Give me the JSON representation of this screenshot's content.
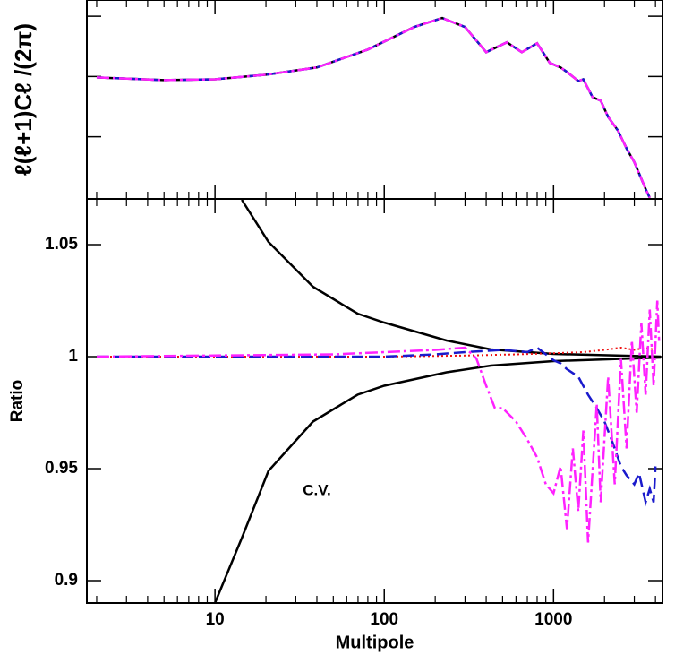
{
  "chart_data": [
    {
      "type": "line",
      "ylabel": "ℓ(ℓ+1)Cℓ /(2π)",
      "log_x": true,
      "log_y": true,
      "xlim": [
        1.75,
        4400
      ],
      "xticks": [
        10,
        100,
        1000
      ],
      "xticks_minor": [
        2,
        3,
        4,
        5,
        6,
        7,
        8,
        9,
        20,
        30,
        40,
        50,
        60,
        70,
        80,
        90,
        200,
        300,
        400,
        500,
        600,
        700,
        800,
        900,
        2000,
        3000,
        4000
      ],
      "ylim": [
        9.3,
        18600
      ],
      "yticks": [
        100,
        1000,
        10000
      ],
      "series": [
        {
          "color": "#000000",
          "dash": "solid",
          "x": [
            2,
            5,
            10,
            20,
            40,
            80,
            150,
            220,
            300,
            400,
            530,
            650,
            800,
            950,
            1100,
            1200,
            1400,
            1500,
            1700,
            1900,
            2100,
            2400,
            2700,
            3000,
            3500,
            3700
          ],
          "values": [
            966,
            870,
            900,
            1070,
            1410,
            2800,
            6620,
            9333,
            6620,
            2530,
            3690,
            2530,
            3560,
            1680,
            1410,
            1190,
            840,
            900,
            454,
            396,
            213,
            127,
            64,
            38,
            13.6,
            9.7
          ]
        },
        {
          "color": "#1a1acc",
          "dash": "dashed",
          "x": [
            2,
            5,
            10,
            20,
            40,
            80,
            150,
            220,
            300,
            400,
            530,
            650,
            800,
            950,
            1100,
            1200,
            1400,
            1500,
            1700,
            1900,
            2100,
            2400,
            2700,
            3000,
            3500,
            3700
          ],
          "values": [
            966,
            870,
            900,
            1070,
            1410,
            2800,
            6620,
            9333,
            6620,
            2530,
            3690,
            2530,
            3560,
            1680,
            1410,
            1190,
            840,
            900,
            454,
            396,
            213,
            127,
            64,
            38,
            13.6,
            9.7
          ]
        },
        {
          "color": "#ff22ff",
          "dash": "dashdot",
          "x": [
            2,
            5,
            10,
            20,
            40,
            80,
            150,
            220,
            300,
            400,
            530,
            650,
            800,
            950,
            1100,
            1200,
            1400,
            1500,
            1700,
            1900,
            2100,
            2400,
            2700,
            3000,
            3500,
            3700
          ],
          "values": [
            966,
            870,
            900,
            1070,
            1410,
            2800,
            6620,
            9333,
            6620,
            2530,
            3690,
            2530,
            3560,
            1680,
            1410,
            1190,
            840,
            900,
            454,
            396,
            213,
            127,
            64,
            38,
            13.6,
            9.7
          ]
        }
      ]
    },
    {
      "type": "line",
      "xlabel": "Multipole",
      "ylabel": "Ratio",
      "log_x": true,
      "log_y": false,
      "xlim": [
        1.75,
        4400
      ],
      "xticks": [
        10,
        100,
        1000
      ],
      "xticks_minor": [
        2,
        3,
        4,
        5,
        6,
        7,
        8,
        9,
        20,
        30,
        40,
        50,
        60,
        70,
        80,
        90,
        200,
        300,
        400,
        500,
        600,
        700,
        800,
        900,
        2000,
        3000,
        4000
      ],
      "ylim": [
        0.89,
        1.0704
      ],
      "yticks": [
        0.9,
        0.95,
        1,
        1.05
      ],
      "annotation": {
        "text": "C.V.",
        "x": 40,
        "y": 0.94
      },
      "series": [
        {
          "color": "#000000",
          "dash": "solid",
          "x": [
            14.4,
            20.7,
            37.9,
            69.5,
            100,
            233,
            427,
            1000,
            4300
          ],
          "values": [
            1.07,
            1.0512,
            1.0312,
            1.0192,
            1.0152,
            1.0072,
            1.0032,
            1.0012,
            1.0
          ]
        },
        {
          "color": "#000000",
          "dash": "solid",
          "x": [
            10,
            14.4,
            20.7,
            37.9,
            69.5,
            100,
            233,
            427,
            1000,
            4300
          ],
          "values": [
            0.89,
            0.919,
            0.949,
            0.971,
            0.983,
            0.987,
            0.993,
            0.996,
            0.998,
            0.9996
          ]
        },
        {
          "color": "#ee1111",
          "dash": "dotted",
          "x": [
            2,
            100,
            300,
            600,
            1000,
            1500,
            2000,
            2500,
            3000,
            3500,
            4000
          ],
          "values": [
            1.0,
            1.0,
            1.0005,
            1.001,
            1.0015,
            1.002,
            1.003,
            1.004,
            1.003,
            1.004,
            1.003
          ]
        },
        {
          "color": "#1a1acc",
          "dash": "dashed",
          "x": [
            2,
            100,
            200,
            300,
            500,
            700,
            800,
            1000,
            1100,
            1200,
            1400,
            1600,
            1800,
            2000,
            2200,
            2500,
            2700,
            3000,
            3200,
            3500,
            3700,
            3900,
            4000
          ],
          "values": [
            1.0,
            1.0,
            1.001,
            1.002,
            1.003,
            1.002,
            1.004,
            0.9984,
            0.997,
            0.9944,
            0.991,
            0.983,
            0.977,
            0.971,
            0.963,
            0.951,
            0.947,
            0.943,
            0.948,
            0.935,
            0.941,
            0.935,
            0.951
          ]
        },
        {
          "color": "#ff22ff",
          "dash": "dashdot",
          "x": [
            2,
            50,
            100,
            200,
            300,
            350,
            400,
            450,
            500,
            600,
            700,
            800,
            900,
            1000,
            1100,
            1200,
            1300,
            1400,
            1500,
            1600,
            1800,
            1900,
            2100,
            2300,
            2500,
            2700,
            2900,
            3100,
            3300,
            3500,
            3700,
            3900,
            4100,
            4200
          ],
          "values": [
            1.0,
            1.001,
            1.002,
            1.003,
            1.004,
            0.9992,
            0.987,
            0.977,
            0.977,
            0.971,
            0.963,
            0.955,
            0.943,
            0.939,
            0.951,
            0.923,
            0.959,
            0.931,
            0.967,
            0.917,
            0.979,
            0.935,
            0.991,
            0.943,
            0.999,
            0.959,
            1.0072,
            0.975,
            1.015,
            0.983,
            1.021,
            0.987,
            1.025,
            1.007
          ]
        }
      ]
    }
  ]
}
